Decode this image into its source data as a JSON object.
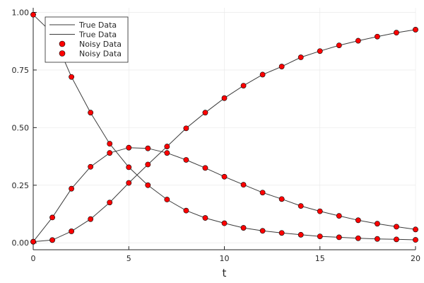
{
  "chart_data": {
    "type": "line",
    "xlabel": "t",
    "ylabel": "",
    "xlim": [
      0,
      20
    ],
    "ylim": [
      -0.03,
      1.02
    ],
    "xticks": [
      "0",
      "5",
      "10",
      "15",
      "20"
    ],
    "yticks": [
      "0.00",
      "0.25",
      "0.50",
      "0.75",
      "1.00"
    ],
    "grid": true,
    "legend_position": "top-left",
    "colors": {
      "line": "#3b3b3b",
      "marker": "#ff0000",
      "grid": "#e6e6e6",
      "axis": "#262626"
    },
    "legend": [
      {
        "label": "True Data",
        "kind": "line"
      },
      {
        "label": "True Data",
        "kind": "line"
      },
      {
        "label": "Noisy Data",
        "kind": "marker"
      },
      {
        "label": "Noisy Data",
        "kind": "marker"
      }
    ],
    "x": [
      0,
      1,
      2,
      3,
      4,
      5,
      6,
      7,
      8,
      9,
      10,
      11,
      12,
      13,
      14,
      15,
      16,
      17,
      18,
      19,
      20
    ],
    "series": [
      {
        "values": [
          0.99,
          0.91,
          0.72,
          0.565,
          0.43,
          0.328,
          0.25,
          0.188,
          0.14,
          0.108,
          0.085,
          0.065,
          0.052,
          0.043,
          0.035,
          0.028,
          0.024,
          0.02,
          0.017,
          0.015,
          0.013
        ]
      },
      {
        "values": [
          0.005,
          0.11,
          0.235,
          0.33,
          0.39,
          0.413,
          0.41,
          0.39,
          0.36,
          0.325,
          0.287,
          0.252,
          0.218,
          0.19,
          0.16,
          0.137,
          0.117,
          0.098,
          0.083,
          0.07,
          0.058
        ]
      },
      {
        "values": [
          0.005,
          0.012,
          0.05,
          0.103,
          0.175,
          0.26,
          0.34,
          0.418,
          0.497,
          0.565,
          0.628,
          0.682,
          0.73,
          0.765,
          0.805,
          0.832,
          0.857,
          0.877,
          0.895,
          0.912,
          0.925
        ]
      }
    ]
  }
}
